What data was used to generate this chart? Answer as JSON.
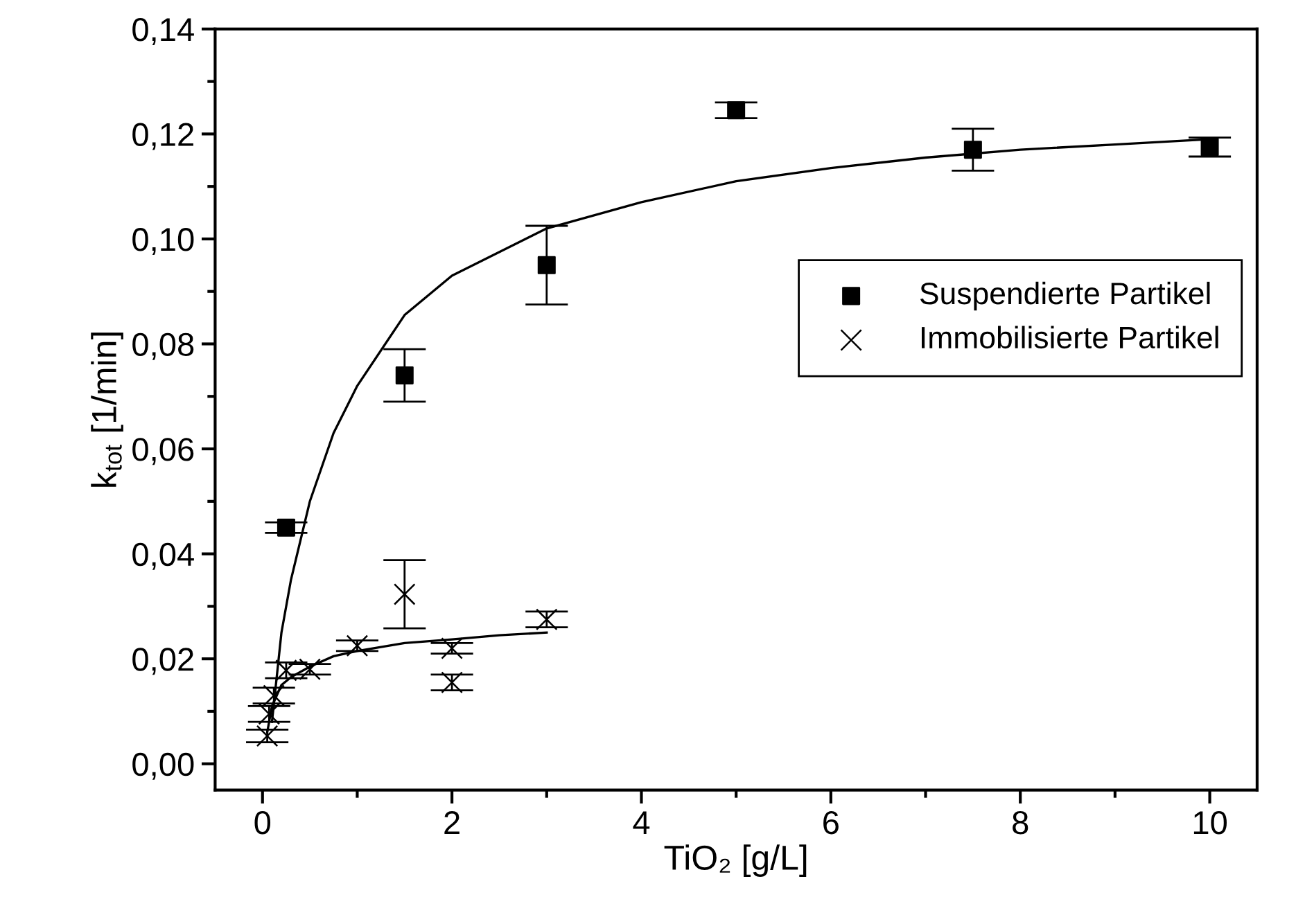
{
  "chart_data": {
    "type": "scatter",
    "xlabel": "TiO₂ [g/L]",
    "ylabel": "k$_{tot}$ [1/min]",
    "xlim": [
      -0.5,
      10.5
    ],
    "xticks": [
      0,
      2,
      4,
      6,
      8,
      10
    ],
    "ylim": [
      -0.005,
      0.14
    ],
    "yticks": [
      {
        "value": 0,
        "label": "0,00"
      },
      {
        "value": 0.02,
        "label": "0,02"
      },
      {
        "value": 0.04,
        "label": "0,04"
      },
      {
        "value": 0.06,
        "label": "0,06"
      },
      {
        "value": 0.08,
        "label": "0,08"
      },
      {
        "value": 0.1,
        "label": "0,10"
      },
      {
        "value": 0.12,
        "label": "0,12"
      },
      {
        "value": 0.14,
        "label": "0,14"
      }
    ],
    "grid": false,
    "legend": "right",
    "series": [
      {
        "name": "Suspendierte Partikel",
        "marker": "square",
        "color": "#000000",
        "x": [
          0.25,
          1.5,
          3,
          5,
          7.5,
          10
        ],
        "values": [
          0.045,
          0.074,
          0.095,
          0.1245,
          0.117,
          0.1175
        ],
        "errors": [
          0.001,
          0.005,
          0.0075,
          0.0015,
          0.004,
          0.0018
        ]
      },
      {
        "name": "Immobilisierte Partikel",
        "marker": "cross",
        "color": "#000000",
        "x": [
          0.05,
          0.07,
          0.12,
          0.25,
          0.5,
          1,
          1.5,
          2,
          2,
          3
        ],
        "values": [
          0.0053,
          0.0095,
          0.013,
          0.0178,
          0.018,
          0.0225,
          0.0323,
          0.022,
          0.0155,
          0.0275
        ],
        "errors": [
          0.0012,
          0.0015,
          0.0015,
          0.0015,
          0.001,
          0.001,
          0.0065,
          0.001,
          0.0015,
          0.0015
        ]
      },
      {
        "type": "line",
        "color": "#000000",
        "x": [
          0.1,
          0.2,
          0.3,
          0.5,
          0.75,
          1,
          1.5,
          2,
          3,
          4,
          5,
          6,
          7,
          8,
          9,
          10
        ],
        "values": [
          0.008,
          0.025,
          0.035,
          0.05,
          0.063,
          0.072,
          0.0855,
          0.093,
          0.102,
          0.107,
          0.111,
          0.1135,
          0.1155,
          0.117,
          0.118,
          0.119
        ]
      },
      {
        "type": "line",
        "color": "#000000",
        "x": [
          0.05,
          0.1,
          0.2,
          0.3,
          0.5,
          0.75,
          1,
          1.5,
          2,
          2.5,
          3
        ],
        "values": [
          0.006,
          0.011,
          0.015,
          0.0165,
          0.0185,
          0.0205,
          0.0215,
          0.023,
          0.0237,
          0.0245,
          0.025
        ]
      }
    ]
  }
}
